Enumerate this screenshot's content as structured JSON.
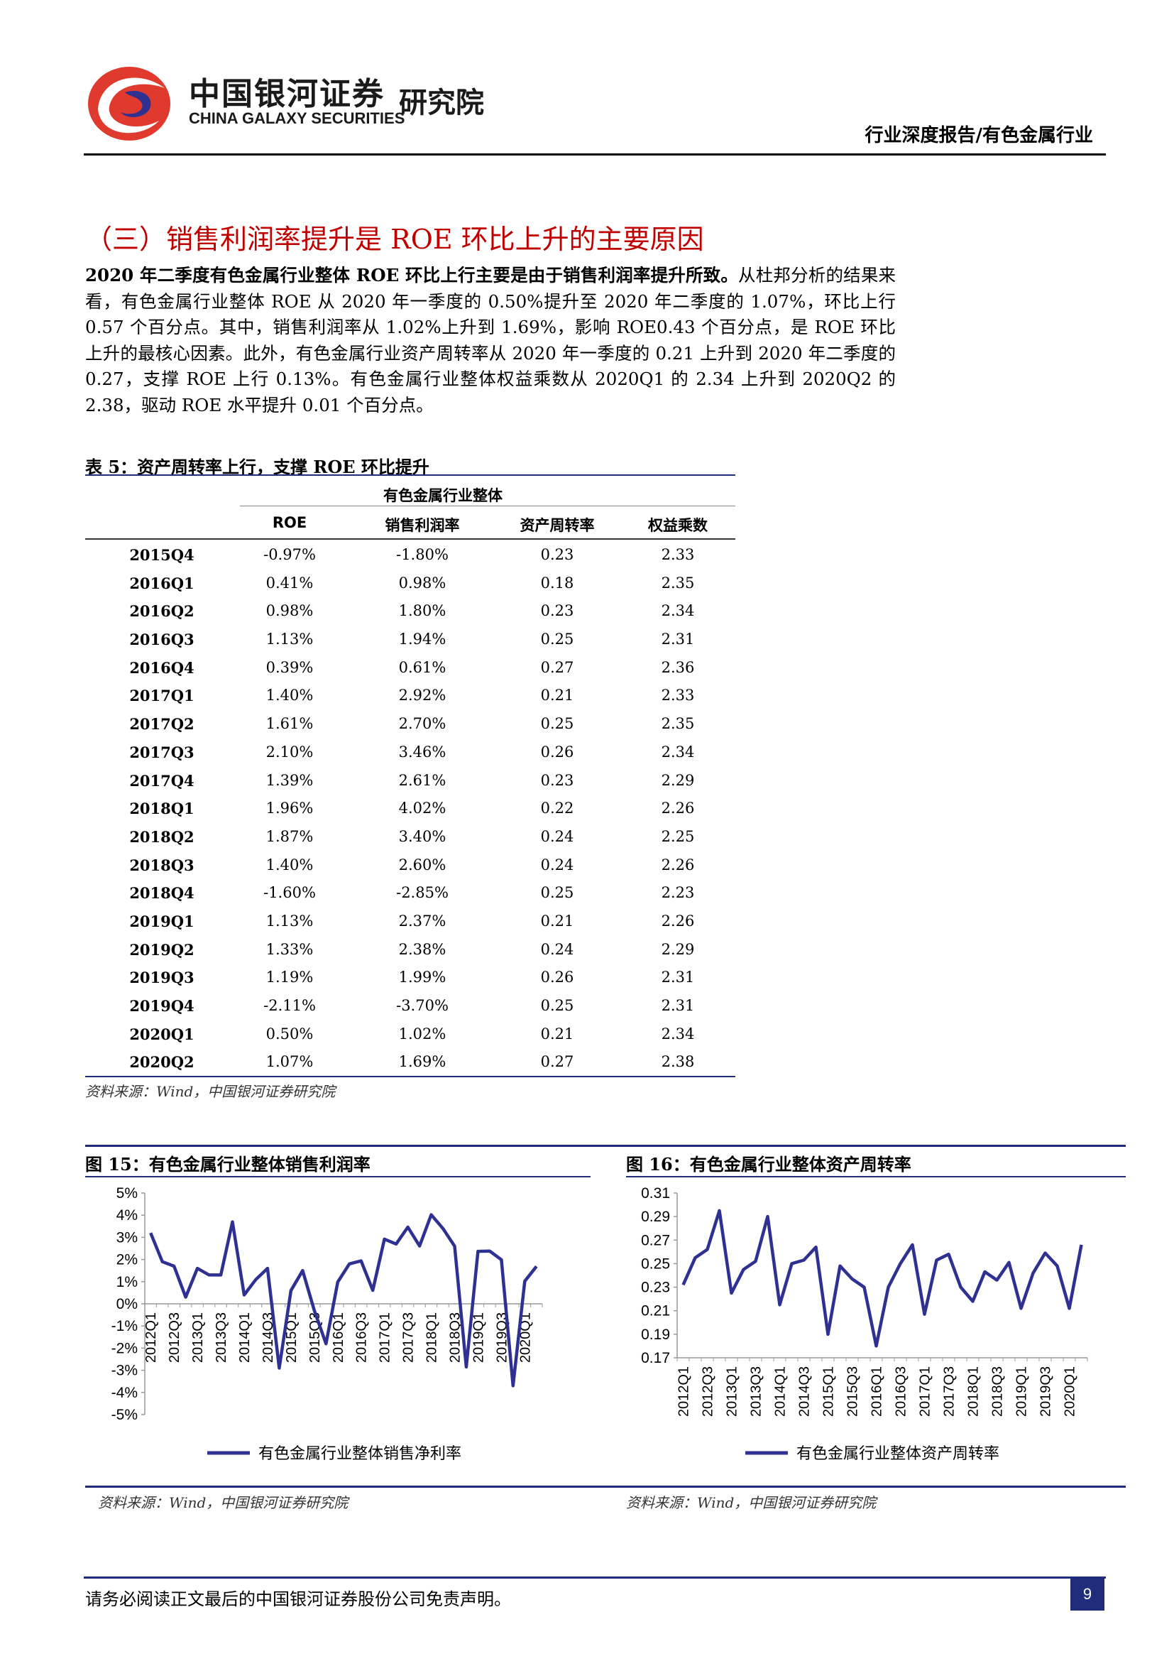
{
  "header": {
    "logo_cn": "中国银河证券",
    "logo_en": "CHINA GALAXY SECURITIES",
    "logo_institute": "研究院",
    "report_type": "行业深度报告/有色金属行业",
    "brand_colors": {
      "red": "#d12a2a",
      "navy": "#1f2d7a"
    }
  },
  "section": {
    "title": "（三）销售利润率提升是 ROE 环比上升的主要原因",
    "para_bold": "2020 年二季度有色金属行业整体 ROE 环比上行主要是由于销售利润率提升所致。",
    "para_rest": "从杜邦分析的结果来看，有色金属行业整体 ROE 从 2020 年一季度的 0.50%提升至 2020 年二季度的 1.07%，环比上行 0.57 个百分点。其中，销售利润率从 1.02%上升到 1.69%，影响 ROE0.43 个百分点，是 ROE 环比上升的最核心因素。此外，有色金属行业资产周转率从 2020 年一季度的 0.21 上升到 2020 年二季度的 0.27，支撑 ROE 上行 0.13%。有色金属行业整体权益乘数从 2020Q1 的 2.34 上升到 2020Q2 的 2.38，驱动 ROE 水平提升 0.01 个百分点。"
  },
  "table": {
    "caption": "表 5：资产周转率上行，支撑 ROE 环比提升",
    "group_header": "有色金属行业整体",
    "columns": [
      "ROE",
      "销售利润率",
      "资产周转率",
      "权益乘数"
    ],
    "rows": [
      [
        "2015Q4",
        "-0.97%",
        "-1.80%",
        "0.23",
        "2.33"
      ],
      [
        "2016Q1",
        "0.41%",
        "0.98%",
        "0.18",
        "2.35"
      ],
      [
        "2016Q2",
        "0.98%",
        "1.80%",
        "0.23",
        "2.34"
      ],
      [
        "2016Q3",
        "1.13%",
        "1.94%",
        "0.25",
        "2.31"
      ],
      [
        "2016Q4",
        "0.39%",
        "0.61%",
        "0.27",
        "2.36"
      ],
      [
        "2017Q1",
        "1.40%",
        "2.92%",
        "0.21",
        "2.33"
      ],
      [
        "2017Q2",
        "1.61%",
        "2.70%",
        "0.25",
        "2.35"
      ],
      [
        "2017Q3",
        "2.10%",
        "3.46%",
        "0.26",
        "2.34"
      ],
      [
        "2017Q4",
        "1.39%",
        "2.61%",
        "0.23",
        "2.29"
      ],
      [
        "2018Q1",
        "1.96%",
        "4.02%",
        "0.22",
        "2.26"
      ],
      [
        "2018Q2",
        "1.87%",
        "3.40%",
        "0.24",
        "2.25"
      ],
      [
        "2018Q3",
        "1.40%",
        "2.60%",
        "0.24",
        "2.26"
      ],
      [
        "2018Q4",
        "-1.60%",
        "-2.85%",
        "0.25",
        "2.23"
      ],
      [
        "2019Q1",
        "1.13%",
        "2.37%",
        "0.21",
        "2.26"
      ],
      [
        "2019Q2",
        "1.33%",
        "2.38%",
        "0.24",
        "2.29"
      ],
      [
        "2019Q3",
        "1.19%",
        "1.99%",
        "0.26",
        "2.31"
      ],
      [
        "2019Q4",
        "-2.11%",
        "-3.70%",
        "0.25",
        "2.31"
      ],
      [
        "2020Q1",
        "0.50%",
        "1.02%",
        "0.21",
        "2.34"
      ],
      [
        "2020Q2",
        "1.07%",
        "1.69%",
        "0.27",
        "2.38"
      ]
    ],
    "source": "资料来源：Wind，中国银河证券研究院"
  },
  "charts": {
    "left_title": "图 15：有色金属行业整体销售利润率",
    "right_title": "图 16：有色金属行业整体资产周转率",
    "left_source": "资料来源：Wind，中国银河证券研究院",
    "right_source": "资料来源：Wind，中国银河证券研究院"
  },
  "chart_data": [
    {
      "type": "line",
      "title": "图 15：有色金属行业整体销售利润率",
      "x": [
        "2012Q1",
        "2012Q2",
        "2012Q3",
        "2012Q4",
        "2013Q1",
        "2013Q2",
        "2013Q3",
        "2013Q4",
        "2014Q1",
        "2014Q2",
        "2014Q3",
        "2014Q4",
        "2015Q1",
        "2015Q2",
        "2015Q3",
        "2015Q4",
        "2016Q1",
        "2016Q2",
        "2016Q3",
        "2016Q4",
        "2017Q1",
        "2017Q2",
        "2017Q3",
        "2017Q4",
        "2018Q1",
        "2018Q2",
        "2018Q3",
        "2018Q4",
        "2019Q1",
        "2019Q2",
        "2019Q3",
        "2019Q4",
        "2020Q1",
        "2020Q2"
      ],
      "x_tick_labels": [
        "2012Q1",
        "2012Q3",
        "2013Q1",
        "2013Q3",
        "2014Q1",
        "2014Q3",
        "2015Q1",
        "2015Q3",
        "2016Q1",
        "2016Q3",
        "2017Q1",
        "2017Q3",
        "2018Q1",
        "2018Q3",
        "2019Q1",
        "2019Q3",
        "2020Q1"
      ],
      "series": [
        {
          "name": "有色金属行业整体销售净利率",
          "color": "#2e3192",
          "values": [
            3.2,
            1.9,
            1.7,
            0.3,
            1.6,
            1.3,
            1.3,
            3.7,
            0.4,
            1.1,
            1.6,
            -2.9,
            0.6,
            1.5,
            -0.3,
            -1.8,
            0.98,
            1.8,
            1.94,
            0.61,
            2.92,
            2.7,
            3.46,
            2.61,
            4.02,
            3.4,
            2.6,
            -2.85,
            2.37,
            2.38,
            1.99,
            -3.7,
            1.02,
            1.69
          ]
        }
      ],
      "yticks": [
        "5%",
        "4%",
        "3%",
        "2%",
        "1%",
        "0%",
        "-1%",
        "-2%",
        "-3%",
        "-4%",
        "-5%"
      ],
      "ylim": [
        -5,
        5
      ]
    },
    {
      "type": "line",
      "title": "图 16：有色金属行业整体资产周转率",
      "x": [
        "2012Q1",
        "2012Q2",
        "2012Q3",
        "2012Q4",
        "2013Q1",
        "2013Q2",
        "2013Q3",
        "2013Q4",
        "2014Q1",
        "2014Q2",
        "2014Q3",
        "2014Q4",
        "2015Q1",
        "2015Q2",
        "2015Q3",
        "2015Q4",
        "2016Q1",
        "2016Q2",
        "2016Q3",
        "2016Q4",
        "2017Q1",
        "2017Q2",
        "2017Q3",
        "2017Q4",
        "2018Q1",
        "2018Q2",
        "2018Q3",
        "2018Q4",
        "2019Q1",
        "2019Q2",
        "2019Q3",
        "2019Q4",
        "2020Q1",
        "2020Q2"
      ],
      "x_tick_labels": [
        "2012Q1",
        "2012Q3",
        "2013Q1",
        "2013Q3",
        "2014Q1",
        "2014Q3",
        "2015Q1",
        "2015Q3",
        "2016Q1",
        "2016Q3",
        "2017Q1",
        "2017Q3",
        "2018Q1",
        "2018Q3",
        "2019Q1",
        "2019Q3",
        "2020Q1"
      ],
      "series": [
        {
          "name": "有色金属行业整体资产周转率",
          "color": "#2e3192",
          "values": [
            0.232,
            0.255,
            0.262,
            0.295,
            0.225,
            0.245,
            0.252,
            0.29,
            0.215,
            0.25,
            0.253,
            0.264,
            0.19,
            0.248,
            0.237,
            0.23,
            0.18,
            0.23,
            0.25,
            0.266,
            0.207,
            0.253,
            0.258,
            0.23,
            0.218,
            0.243,
            0.236,
            0.251,
            0.212,
            0.242,
            0.259,
            0.248,
            0.212,
            0.266
          ]
        }
      ],
      "yticks": [
        "0.31",
        "0.29",
        "0.27",
        "0.25",
        "0.23",
        "0.21",
        "0.19",
        "0.17"
      ],
      "ylim": [
        0.17,
        0.31
      ]
    }
  ],
  "footer": {
    "disclaimer": "请务必阅读正文最后的中国银河证券股份公司免责声明。",
    "page_number": "9"
  }
}
